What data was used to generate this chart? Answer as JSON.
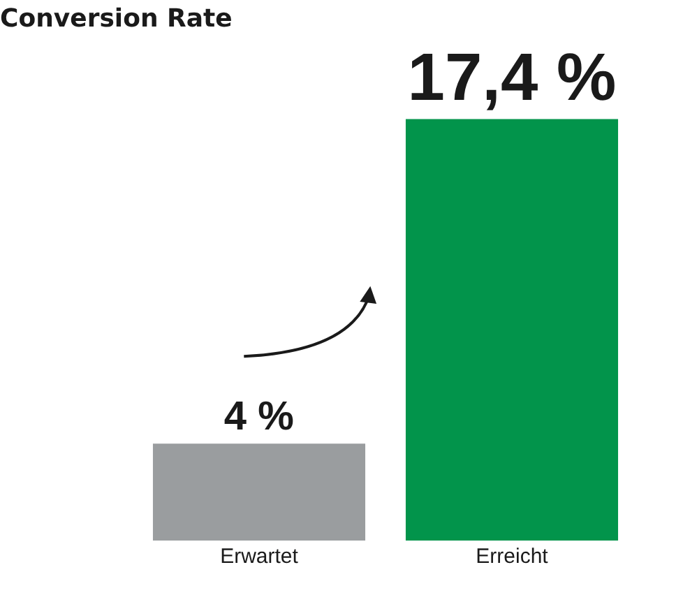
{
  "chart_data": {
    "type": "bar",
    "title": "Conversion Rate",
    "categories": [
      "Erwartet",
      "Erreicht"
    ],
    "values": [
      4,
      17.4
    ],
    "colors": [
      "#9a9d9f",
      "#02944b"
    ],
    "value_labels": [
      "4 %",
      "17,4 %"
    ],
    "legend": false,
    "tick_labels": "x"
  }
}
